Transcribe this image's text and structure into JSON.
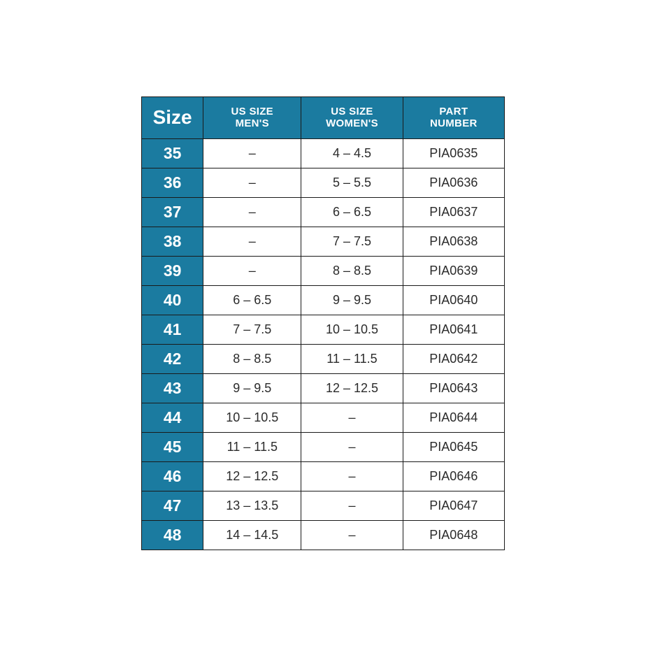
{
  "table": {
    "type": "table",
    "header_bg": "#1b7ba0",
    "header_fg": "#ffffff",
    "cell_bg": "#ffffff",
    "cell_fg": "#2b2b2b",
    "border_color": "#1a1a1a",
    "columns": [
      {
        "label": "Size",
        "em": true
      },
      {
        "label_line1": "US SIZE",
        "label_line2": "MEN'S"
      },
      {
        "label_line1": "US SIZE",
        "label_line2": "WOMEN'S"
      },
      {
        "label_line1": "PART",
        "label_line2": "NUMBER"
      }
    ],
    "rows": [
      {
        "size": "35",
        "mens": "–",
        "womens": "4 – 4.5",
        "part": "PIA0635"
      },
      {
        "size": "36",
        "mens": "–",
        "womens": "5 – 5.5",
        "part": "PIA0636"
      },
      {
        "size": "37",
        "mens": "–",
        "womens": "6 – 6.5",
        "part": "PIA0637"
      },
      {
        "size": "38",
        "mens": "–",
        "womens": "7 – 7.5",
        "part": "PIA0638"
      },
      {
        "size": "39",
        "mens": "–",
        "womens": "8 – 8.5",
        "part": "PIA0639"
      },
      {
        "size": "40",
        "mens": "6 – 6.5",
        "womens": "9 – 9.5",
        "part": "PIA0640"
      },
      {
        "size": "41",
        "mens": "7 – 7.5",
        "womens": "10 – 10.5",
        "part": "PIA0641"
      },
      {
        "size": "42",
        "mens": "8 – 8.5",
        "womens": "11 – 11.5",
        "part": "PIA0642"
      },
      {
        "size": "43",
        "mens": "9 – 9.5",
        "womens": "12 – 12.5",
        "part": "PIA0643"
      },
      {
        "size": "44",
        "mens": "10 – 10.5",
        "womens": "–",
        "part": "PIA0644"
      },
      {
        "size": "45",
        "mens": "11 – 11.5",
        "womens": "–",
        "part": "PIA0645"
      },
      {
        "size": "46",
        "mens": "12 – 12.5",
        "womens": "–",
        "part": "PIA0646"
      },
      {
        "size": "47",
        "mens": "13 – 13.5",
        "womens": "–",
        "part": "PIA0647"
      },
      {
        "size": "48",
        "mens": "14 – 14.5",
        "womens": "–",
        "part": "PIA0648"
      }
    ]
  }
}
